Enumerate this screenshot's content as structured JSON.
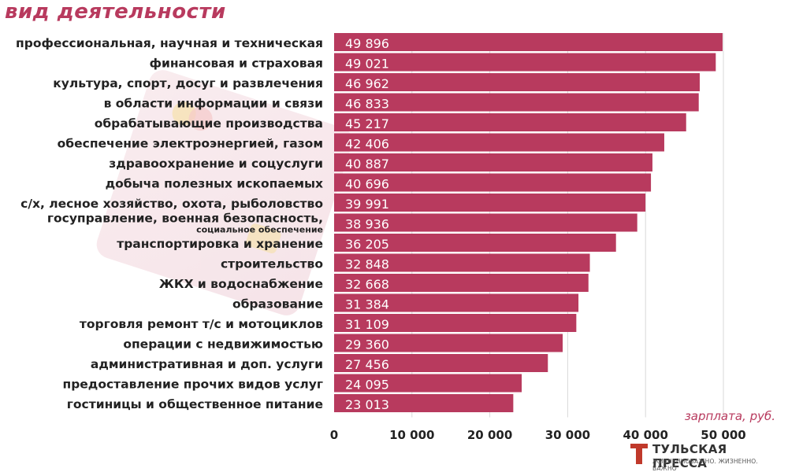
{
  "title": "вид деятельности",
  "unit_label": "зарплата, руб.",
  "logo": {
    "name": "ТУЛЬСКАЯ ПРЕССА",
    "slogan": "ЖИЗНЕННОВАЖНО. ЖИЗНЕННО. ВАЖНО"
  },
  "colors": {
    "bar": "#b83a5e",
    "title": "#b83a5e"
  },
  "chart_data": {
    "type": "bar",
    "orientation": "horizontal",
    "categories": [
      "профессиональная, научная и техническая",
      "финансовая и страховая",
      "культура, спорт, досуг и развлечения",
      "в области информации и связи",
      "обрабатывающие производства",
      "обеспечение электроэнергией, газом",
      "здравоохранение и соцуслуги",
      "добыча полезных ископаемых",
      "с/х, лесное хозяйство, охота, рыболовство",
      "госуправление, военная безопасность,",
      "транспортировка и хранение",
      "строительство",
      "ЖКХ и водоснабжение",
      "образование",
      "торговля ремонт т/с  и мотоциклов",
      "операции с недвижимостью",
      "административная и доп. услуги",
      "предоставление прочих видов услуг",
      "гостиницы и общественное питание"
    ],
    "category_sublabels": {
      "9": "социальное обеспечение"
    },
    "values": [
      49896,
      49021,
      46962,
      46833,
      45217,
      42406,
      40887,
      40696,
      39991,
      38936,
      36205,
      32848,
      32668,
      31384,
      31109,
      29360,
      27456,
      24095,
      23013
    ],
    "value_labels": [
      "49 896",
      "49 021",
      "46 962",
      "46 833",
      "45 217",
      "42 406",
      "40 887",
      "40 696",
      "39 991",
      "38 936",
      "36 205",
      "32 848",
      "32 668",
      "31 384",
      "31 109",
      "29 360",
      "27 456",
      "24 095",
      "23 013"
    ],
    "xticks": [
      0,
      10000,
      20000,
      30000,
      40000,
      50000
    ],
    "xtick_labels": [
      "0",
      "10 000",
      "20 000",
      "30 000",
      "40 000",
      "50 000"
    ],
    "xlim": [
      0,
      50000
    ],
    "xlabel": "зарплата, руб.",
    "title": "вид деятельности",
    "grid": true
  }
}
